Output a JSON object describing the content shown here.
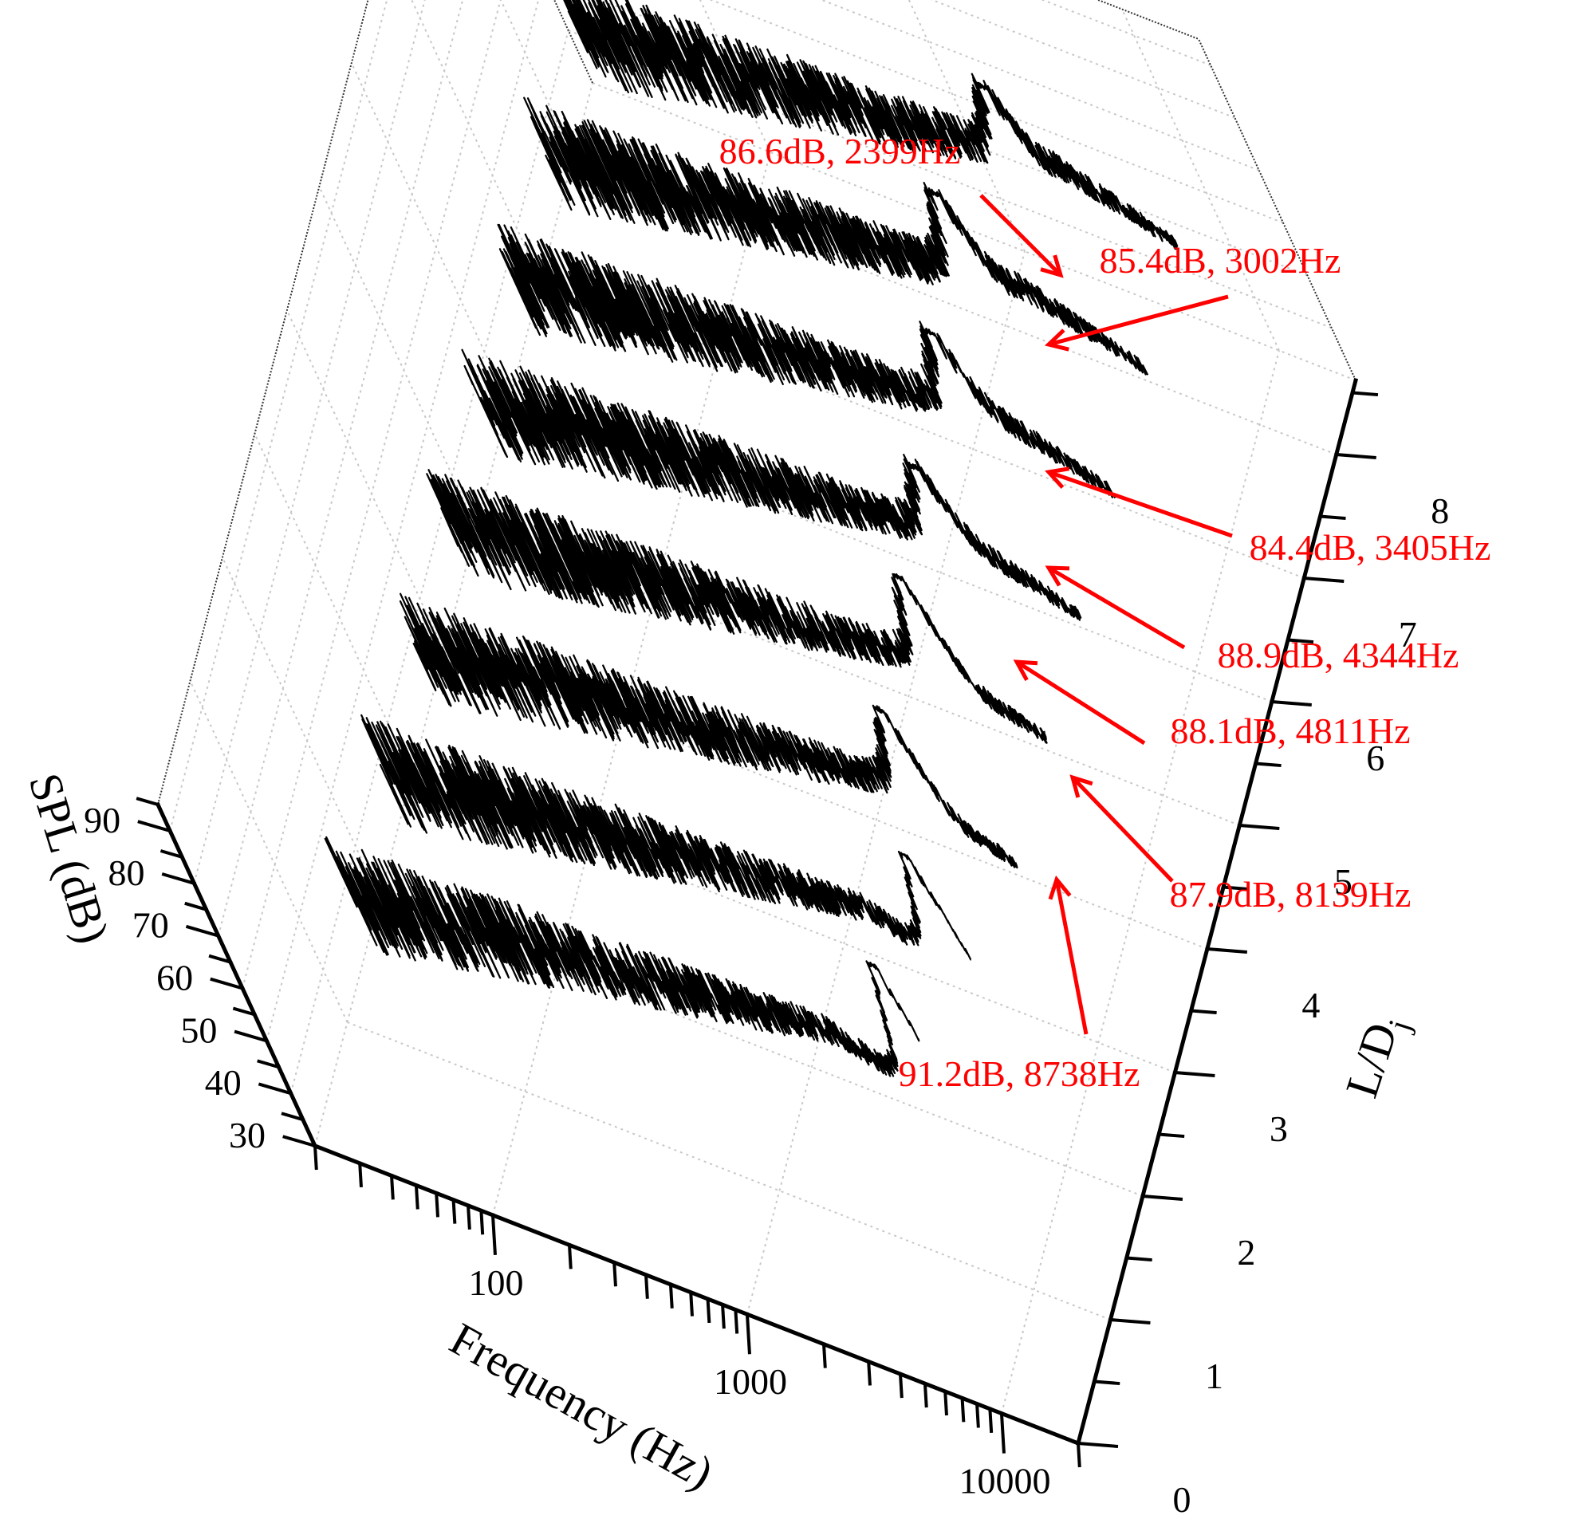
{
  "chart_data": {
    "type": "line",
    "view": "3d-waterfall",
    "x_axis": {
      "label": "Frequency (Hz)",
      "scale": "log",
      "range": [
        20,
        20000
      ],
      "ticks": [
        "100",
        "1000",
        "10000"
      ]
    },
    "y_axis": {
      "label": "L/D",
      "label_subscript": "j",
      "range": [
        0,
        8
      ],
      "ticks": [
        "0",
        "1",
        "2",
        "3",
        "4",
        "5",
        "6",
        "7",
        "8"
      ]
    },
    "z_axis": {
      "label": "SPL (dB)",
      "range": [
        30,
        95
      ],
      "ticks": [
        "30",
        "40",
        "50",
        "60",
        "70",
        "80",
        "90"
      ]
    },
    "grid": true,
    "line_color": "#000000",
    "annotation_color": "#ff0000",
    "series": [
      {
        "ld": 1,
        "peak_freq": 8738,
        "peak_spl": 91.2
      },
      {
        "ld": 2,
        "peak_freq": 8139,
        "peak_spl": 87.9
      },
      {
        "ld": 3,
        "peak_freq": 4811,
        "peak_spl": 88.1
      },
      {
        "ld": 4,
        "peak_freq": 4344,
        "peak_spl": 88.9
      },
      {
        "ld": 5,
        "peak_freq": 3405,
        "peak_spl": 84.4
      },
      {
        "ld": 6,
        "peak_freq": 3002,
        "peak_spl": 85.4
      },
      {
        "ld": 7,
        "peak_freq": 2399,
        "peak_spl": 86.6
      },
      {
        "ld": 8,
        "peak_freq": 2600,
        "peak_spl": 84.0
      }
    ],
    "annotations": [
      {
        "text": "86.6dB, 2399Hz"
      },
      {
        "text": "85.4dB, 3002Hz"
      },
      {
        "text": "84.4dB, 3405Hz"
      },
      {
        "text": "88.9dB, 4344Hz"
      },
      {
        "text": "88.1dB, 4811Hz"
      },
      {
        "text": "87.9dB, 8139Hz"
      },
      {
        "text": "91.2dB, 8738Hz"
      }
    ]
  }
}
